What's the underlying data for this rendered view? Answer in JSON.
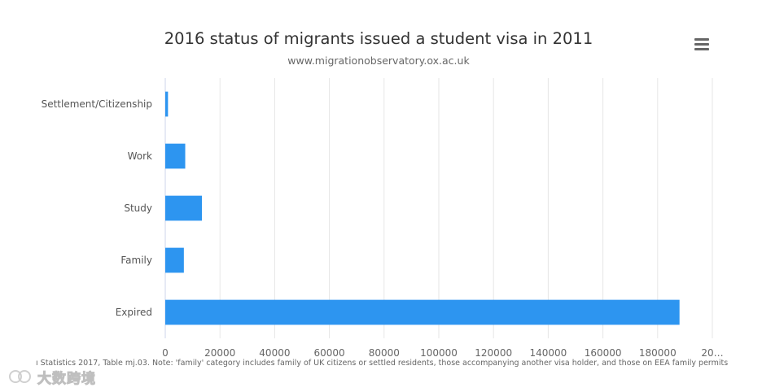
{
  "chart_data": {
    "type": "bar",
    "orientation": "horizontal",
    "title": "2016 status of migrants issued a student visa in 2011",
    "subtitle": "www.migrationobservatory.ox.ac.uk",
    "categories": [
      "Settlement/Citizenship",
      "Work",
      "Study",
      "Family",
      "Expired"
    ],
    "values": [
      1000,
      7300,
      13400,
      6800,
      188000
    ],
    "xlim": [
      0,
      200000
    ],
    "x_ticks": [
      "0",
      "20000",
      "40000",
      "60000",
      "80000",
      "100000",
      "120000",
      "140000",
      "160000",
      "180000",
      "20…"
    ],
    "grid": true,
    "bar_color": "#2d95f0"
  },
  "source_note": "ı Statistics 2017, Table mj.03. Note: 'family' category includes family of UK citizens or settled residents, those accompanying another visa holder, and those on EEA family permits",
  "menu": {
    "icon": "hamburger-icon"
  },
  "watermark": {
    "text": "大数跨境"
  }
}
